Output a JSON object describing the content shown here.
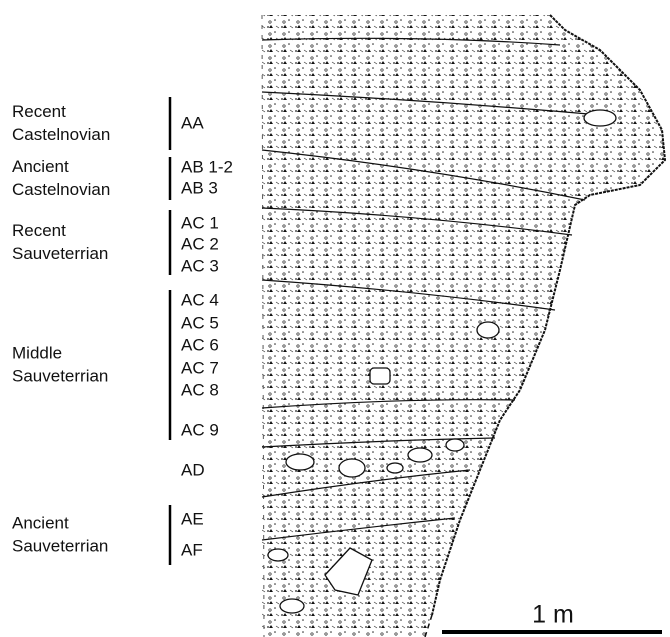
{
  "sequence": [
    {
      "period": [
        "Recent",
        "Castelnovian"
      ],
      "layers": [
        "AA"
      ]
    },
    {
      "period": [
        "Ancient",
        "Castelnovian"
      ],
      "layers": [
        "AB 1-2",
        "AB 3"
      ]
    },
    {
      "period": [
        "Recent",
        "Sauveterrian"
      ],
      "layers": [
        "AC 1",
        "AC 2",
        "AC 3"
      ]
    },
    {
      "period": [
        "Middle",
        "Sauveterrian"
      ],
      "layers": [
        "AC 4",
        "AC 5",
        "AC 6",
        "AC 7",
        "AC 8",
        "AC 9"
      ]
    },
    {
      "layers": [
        "AD"
      ]
    },
    {
      "period": [
        "Ancient",
        "Sauveterrian"
      ],
      "layers": [
        "AE",
        "AF"
      ]
    }
  ],
  "scale": "1 m"
}
